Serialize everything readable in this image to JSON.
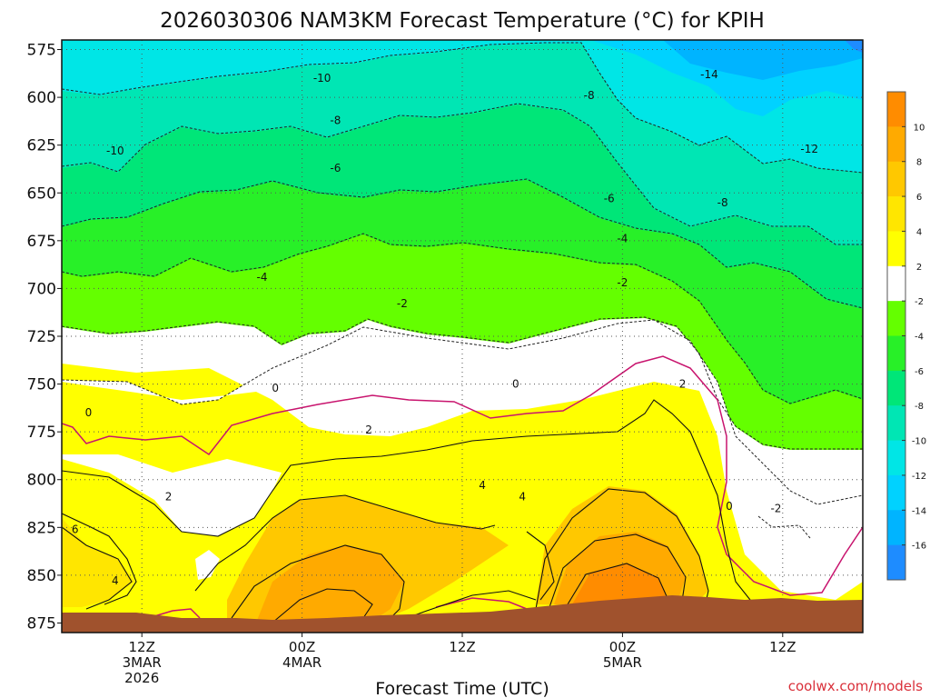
{
  "chart_data": {
    "type": "heatmap",
    "title": "2026030306 NAM3KM Forecast Temperature (°C) for KPIH",
    "xlabel": "Forecast Time (UTC)",
    "ylabel": "",
    "y_ticks": [
      "575",
      "600",
      "625",
      "650",
      "675",
      "700",
      "725",
      "750",
      "775",
      "800",
      "825",
      "850",
      "875"
    ],
    "ylim_hpa": [
      570,
      880
    ],
    "x_ticks": [
      {
        "hour": 6,
        "lines": [
          "12Z",
          "3MAR",
          "2026"
        ]
      },
      {
        "hour": 18,
        "lines": [
          "00Z",
          "4MAR"
        ]
      },
      {
        "hour": 30,
        "lines": [
          "12Z"
        ]
      },
      {
        "hour": 42,
        "lines": [
          "00Z",
          "5MAR"
        ]
      },
      {
        "hour": 54,
        "lines": [
          "12Z"
        ]
      }
    ],
    "xlim_hours": [
      0,
      60
    ],
    "colorbar_levels": [
      -16,
      -14,
      -12,
      -10,
      -8,
      -6,
      -4,
      -2,
      2,
      4,
      6,
      8,
      10
    ],
    "colorbar_colors": [
      "#1e8cff",
      "#00b4ff",
      "#00d2ff",
      "#00e6e6",
      "#00e6b4",
      "#00e678",
      "#28f028",
      "#64ff00",
      "#ffffff",
      "#ffff00",
      "#ffe600",
      "#ffc800",
      "#ffaa00",
      "#ff8c00"
    ],
    "contour_labels": [
      {
        "text": "-10",
        "hour": 19.5,
        "hpa": 590
      },
      {
        "text": "-10",
        "hour": 4,
        "hpa": 628
      },
      {
        "text": "-14",
        "hour": 48.5,
        "hpa": 588
      },
      {
        "text": "-12",
        "hour": 56,
        "hpa": 627
      },
      {
        "text": "-8",
        "hour": 39.5,
        "hpa": 599
      },
      {
        "text": "-8",
        "hour": 20.5,
        "hpa": 612
      },
      {
        "text": "-8",
        "hour": 49.5,
        "hpa": 655
      },
      {
        "text": "-6",
        "hour": 20.5,
        "hpa": 637
      },
      {
        "text": "-6",
        "hour": 41,
        "hpa": 653
      },
      {
        "text": "-4",
        "hour": 42,
        "hpa": 674
      },
      {
        "text": "-4",
        "hour": 15,
        "hpa": 694
      },
      {
        "text": "-2",
        "hour": 25.5,
        "hpa": 708
      },
      {
        "text": "-2",
        "hour": 42,
        "hpa": 697
      },
      {
        "text": "0",
        "hour": 16,
        "hpa": 752
      },
      {
        "text": "0",
        "hour": 34,
        "hpa": 750
      },
      {
        "text": "0",
        "hour": 2,
        "hpa": 765
      },
      {
        "text": "0",
        "hour": 50,
        "hpa": 814
      },
      {
        "text": "-2",
        "hour": 53.5,
        "hpa": 815
      },
      {
        "text": "2",
        "hour": 23,
        "hpa": 774
      },
      {
        "text": "2",
        "hour": 46.5,
        "hpa": 750
      },
      {
        "text": "2",
        "hour": 8,
        "hpa": 809
      },
      {
        "text": "4",
        "hour": 31.5,
        "hpa": 803
      },
      {
        "text": "4",
        "hour": 34.5,
        "hpa": 809
      },
      {
        "text": "4",
        "hour": 4,
        "hpa": 853
      },
      {
        "text": "6",
        "hour": 1,
        "hpa": 826
      }
    ],
    "terrain_color": "#a0522d"
  },
  "credit": "coolwx.com/models"
}
